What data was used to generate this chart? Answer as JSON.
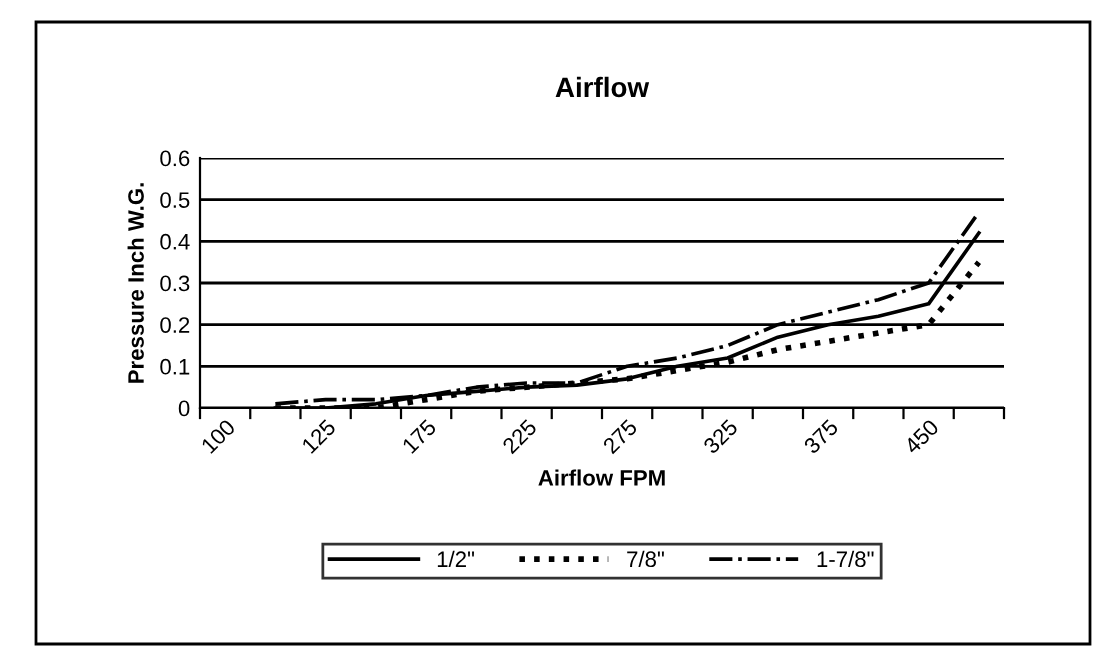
{
  "chart_data": {
    "type": "line",
    "title": "Airflow",
    "xlabel": "Airflow FPM",
    "ylabel": "Pressure Inch W.G.",
    "categories": [
      "100",
      null,
      "125",
      null,
      "175",
      null,
      "225",
      null,
      "275",
      null,
      "325",
      null,
      "375",
      null,
      "450",
      null
    ],
    "series": [
      {
        "name": "1/2\"",
        "color": "#000000",
        "line_style": "solid",
        "values": [
          null,
          0.0,
          0.0,
          0.01,
          0.03,
          0.04,
          0.05,
          0.055,
          0.07,
          0.1,
          0.12,
          0.17,
          0.2,
          0.22,
          0.25,
          0.42
        ]
      },
      {
        "name": "7/8\"",
        "color": "#000000",
        "line_style": "dotted",
        "values": [
          null,
          0.0,
          0.0,
          0.0,
          0.02,
          0.04,
          0.05,
          0.06,
          0.07,
          0.09,
          0.11,
          0.14,
          0.16,
          0.18,
          0.2,
          0.35
        ]
      },
      {
        "name": "1-7/8\"",
        "color": "#000000",
        "line_style": "dashdot",
        "values": [
          null,
          0.01,
          0.02,
          0.02,
          0.03,
          0.05,
          0.06,
          0.06,
          0.1,
          0.12,
          0.15,
          0.2,
          0.23,
          0.26,
          0.3,
          0.47
        ]
      }
    ],
    "ylim": [
      0,
      0.6
    ],
    "yticks": [
      0,
      0.1,
      0.2,
      0.3,
      0.4,
      0.5,
      0.6
    ],
    "grid": "y",
    "legend": "bottom",
    "marker": "none"
  }
}
